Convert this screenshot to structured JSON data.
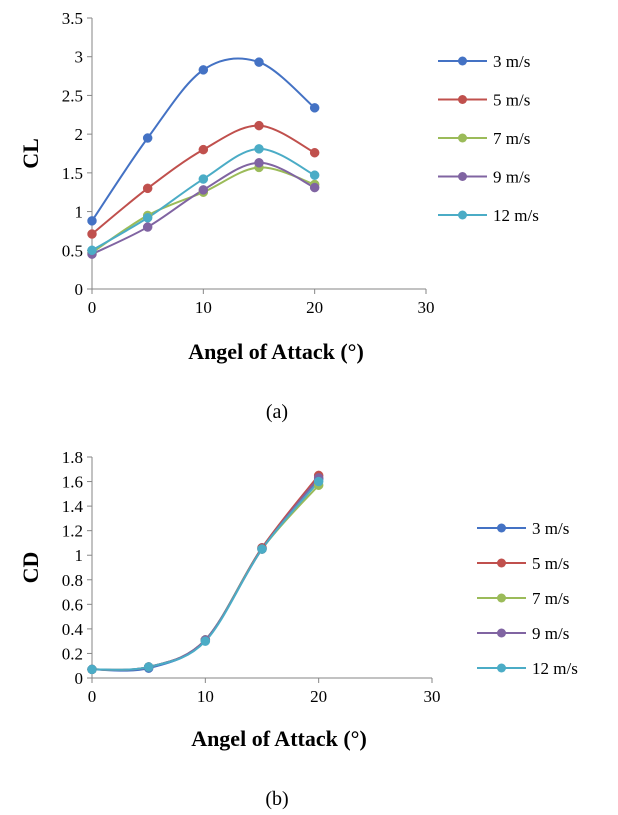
{
  "chart_data": [
    {
      "type": "line",
      "panel_label": "(a)",
      "xlabel": "Angel of Attack (°)",
      "ylabel": "CL",
      "xlim": [
        0,
        30
      ],
      "ylim": [
        0,
        3.5
      ],
      "x_ticks": [
        "0",
        "10",
        "20",
        "30"
      ],
      "y_ticks": [
        "0",
        "0.5",
        "1",
        "1.5",
        "2",
        "2.5",
        "3",
        "3.5"
      ],
      "grid": false,
      "legend_position": "right",
      "x": [
        0,
        5,
        10,
        15,
        20
      ],
      "series": [
        {
          "name": "3 m/s",
          "color": "#4472C4",
          "values": [
            0.88,
            1.95,
            2.83,
            2.93,
            2.34
          ]
        },
        {
          "name": "5 m/s",
          "color": "#C0504D",
          "values": [
            0.71,
            1.3,
            1.8,
            2.11,
            1.76
          ]
        },
        {
          "name": "7 m/s",
          "color": "#9BBB59",
          "values": [
            0.47,
            0.95,
            1.25,
            1.57,
            1.35
          ]
        },
        {
          "name": "9 m/s",
          "color": "#8064A2",
          "values": [
            0.45,
            0.8,
            1.28,
            1.63,
            1.31
          ]
        },
        {
          "name": "12 m/s",
          "color": "#4BACC6",
          "values": [
            0.5,
            0.92,
            1.42,
            1.81,
            1.47
          ]
        }
      ]
    },
    {
      "type": "line",
      "panel_label": "(b)",
      "xlabel": "Angel of Attack (°)",
      "ylabel": "CD",
      "xlim": [
        0,
        30
      ],
      "ylim": [
        0,
        1.8
      ],
      "x_ticks": [
        "0",
        "10",
        "20",
        "30"
      ],
      "y_ticks": [
        "0",
        "0.2",
        "0.4",
        "0.6",
        "0.8",
        "1",
        "1.2",
        "1.4",
        "1.6",
        "1.8"
      ],
      "grid": false,
      "legend_position": "right",
      "x": [
        0,
        5,
        10,
        15,
        20
      ],
      "series": [
        {
          "name": "3 m/s",
          "color": "#4472C4",
          "values": [
            0.07,
            0.08,
            0.31,
            1.06,
            1.62
          ]
        },
        {
          "name": "5 m/s",
          "color": "#C0504D",
          "values": [
            0.07,
            0.09,
            0.31,
            1.06,
            1.65
          ]
        },
        {
          "name": "7 m/s",
          "color": "#9BBB59",
          "values": [
            0.07,
            0.09,
            0.31,
            1.05,
            1.57
          ]
        },
        {
          "name": "9 m/s",
          "color": "#8064A2",
          "values": [
            0.07,
            0.09,
            0.31,
            1.05,
            1.63
          ]
        },
        {
          "name": "12  m/s",
          "color": "#4BACC6",
          "values": [
            0.07,
            0.09,
            0.3,
            1.05,
            1.6
          ]
        }
      ]
    }
  ]
}
